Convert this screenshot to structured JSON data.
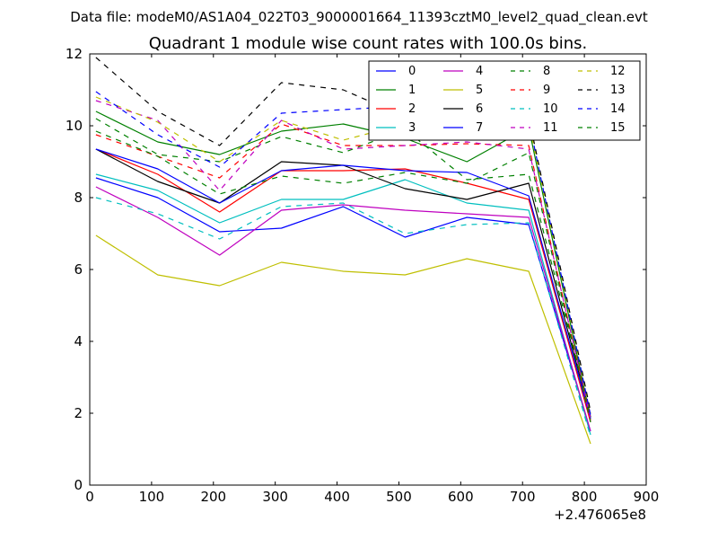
{
  "chart_data": {
    "type": "line",
    "suptitle": "Data file: modeM0/AS1A04_022T03_9000001664_11393cztM0_level2_quad_clean.evt",
    "title": "Quadrant 1 module wise count rates with 100.0s bins.",
    "xlabel": "",
    "ylabel": "",
    "x_offset_label": "+2.476065e8",
    "xlim": [
      0,
      900
    ],
    "ylim": [
      0,
      12
    ],
    "xticks": [
      "0",
      "100",
      "200",
      "300",
      "400",
      "500",
      "600",
      "700",
      "800",
      "900"
    ],
    "yticks": [
      "0",
      "2",
      "4",
      "6",
      "8",
      "10",
      "12"
    ],
    "x": [
      10,
      110,
      210,
      310,
      410,
      510,
      610,
      710,
      810
    ],
    "series": [
      {
        "name": "0",
        "color": "#0000ff",
        "dash": "solid",
        "values": [
          8.55,
          8.0,
          7.05,
          7.15,
          7.75,
          6.9,
          7.45,
          7.25,
          1.5
        ]
      },
      {
        "name": "1",
        "color": "#008000",
        "dash": "solid",
        "values": [
          10.4,
          9.55,
          9.2,
          9.85,
          10.05,
          9.65,
          9.0,
          9.95,
          1.85
        ]
      },
      {
        "name": "2",
        "color": "#ff0000",
        "dash": "solid",
        "values": [
          9.35,
          8.65,
          7.6,
          8.75,
          8.75,
          8.8,
          8.4,
          7.95,
          1.75
        ]
      },
      {
        "name": "3",
        "color": "#00bfbf",
        "dash": "solid",
        "values": [
          8.65,
          8.2,
          7.3,
          7.95,
          7.95,
          8.5,
          7.85,
          7.65,
          1.4
        ]
      },
      {
        "name": "4",
        "color": "#bf00bf",
        "dash": "solid",
        "values": [
          8.3,
          7.45,
          6.4,
          7.65,
          7.8,
          7.65,
          7.55,
          7.45,
          1.5
        ]
      },
      {
        "name": "5",
        "color": "#bfbf00",
        "dash": "solid",
        "values": [
          6.95,
          5.85,
          5.55,
          6.2,
          5.95,
          5.85,
          6.3,
          5.95,
          1.15
        ]
      },
      {
        "name": "6",
        "color": "#000000",
        "dash": "solid",
        "values": [
          9.35,
          8.45,
          7.85,
          9.0,
          8.9,
          8.25,
          7.95,
          8.4,
          1.9
        ]
      },
      {
        "name": "7",
        "color": "#0000ff",
        "dash": "solid",
        "values": [
          9.35,
          8.8,
          7.85,
          8.75,
          8.9,
          8.75,
          8.7,
          8.05,
          1.85
        ]
      },
      {
        "name": "8",
        "color": "#008000",
        "dash": "dashed",
        "values": [
          10.2,
          9.2,
          9.0,
          9.7,
          9.25,
          9.9,
          8.5,
          8.65,
          1.95
        ]
      },
      {
        "name": "9",
        "color": "#ff0000",
        "dash": "dashed",
        "values": [
          9.75,
          9.15,
          8.55,
          10.05,
          9.45,
          9.45,
          9.5,
          9.45,
          1.8
        ]
      },
      {
        "name": "10",
        "color": "#00bfbf",
        "dash": "dashed",
        "values": [
          8.0,
          7.55,
          6.85,
          7.75,
          7.85,
          7.0,
          7.25,
          7.3,
          1.35
        ]
      },
      {
        "name": "11",
        "color": "#bf00bf",
        "dash": "dashed",
        "values": [
          10.7,
          10.15,
          8.2,
          10.15,
          9.35,
          9.45,
          9.55,
          9.35,
          1.85
        ]
      },
      {
        "name": "12",
        "color": "#bfbf00",
        "dash": "dashed",
        "values": [
          10.8,
          10.1,
          9.0,
          10.15,
          9.6,
          10.05,
          9.8,
          10.1,
          2.0
        ]
      },
      {
        "name": "13",
        "color": "#000000",
        "dash": "dashed",
        "values": [
          11.9,
          10.4,
          9.45,
          11.2,
          11.0,
          10.25,
          10.4,
          10.25,
          2.05
        ]
      },
      {
        "name": "14",
        "color": "#0000ff",
        "dash": "dashed",
        "values": [
          10.95,
          9.75,
          8.85,
          10.35,
          10.45,
          10.55,
          9.85,
          10.15,
          1.95
        ]
      },
      {
        "name": "15",
        "color": "#008000",
        "dash": "dashed",
        "values": [
          9.85,
          9.15,
          8.1,
          8.6,
          8.4,
          8.7,
          8.4,
          9.25,
          1.75
        ]
      }
    ],
    "legend_position": "top-right",
    "legend_columns": 4,
    "grid": false
  }
}
